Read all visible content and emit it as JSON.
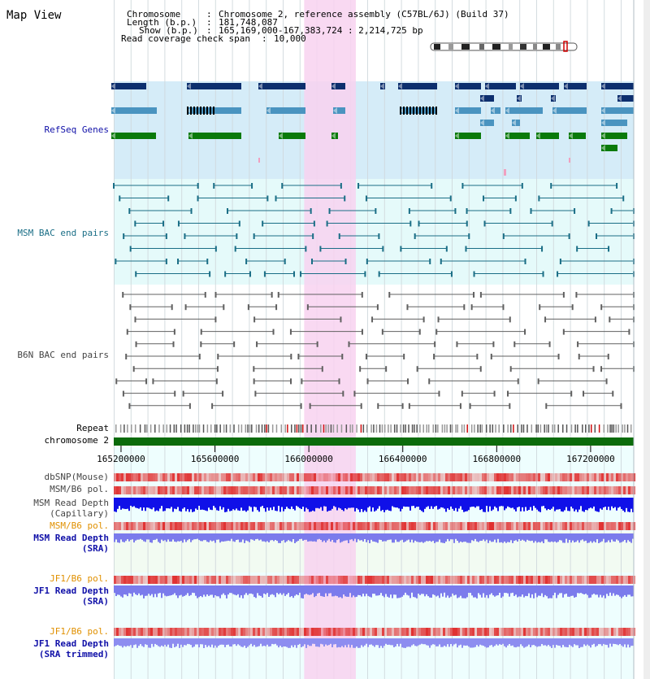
{
  "title": "Map View",
  "info": [
    {
      "label": "Chromosome",
      "value": "Chromosome 2, reference assembly (C57BL/6J) (Build 37)"
    },
    {
      "label": "Length (b.p.)",
      "value": "181,748,087"
    },
    {
      "label": "Show (b.p.)",
      "value": "165,169,000-167,383,724 : 2,214,725 bp"
    },
    {
      "label": "Read coverage check span",
      "value": "10,000"
    }
  ],
  "tracks": {
    "refseq": "RefSeq Genes",
    "msm_bac": "MSM BAC end pairs",
    "b6n_bac": "B6N BAC end pairs",
    "repeat": "Repeat",
    "chromosome": "chromosome 2",
    "dbsnp": "dbSNP(Mouse)",
    "msm_b6_pol": "MSM/B6 pol.",
    "msm_read_cap_1": "MSM Read Depth",
    "msm_read_cap_2": "(Capillary)",
    "msm_b6_pol_2": "MSM/B6 pol.",
    "msm_read_sra_1": "MSM Read Depth",
    "msm_read_sra_2": "(SRA)",
    "jf1_b6_pol": "JF1/B6 pol.",
    "jf1_read_sra_1": "JF1 Read Depth",
    "jf1_read_sra_2": "(SRA)",
    "jf1_b6_pol_2": "JF1/B6 pol.",
    "jf1_read_trim_1": "JF1 Read Depth",
    "jf1_read_trim_2": "(SRA trimmed)"
  },
  "axis": {
    "start_bp": 165169000,
    "end_bp": 167383724,
    "ticks": [
      165200000,
      165600000,
      166000000,
      166400000,
      166800000,
      167200000
    ],
    "tick_labels": [
      "165200000",
      "165600000",
      "166000000",
      "166400000",
      "166800000",
      "167200000"
    ]
  },
  "highlight_region_bp": [
    165980000,
    166200000
  ],
  "colors": {
    "refseq_bg": "#d5ecf8",
    "bac_bg": "#e5fafa",
    "highlight": "#f8d2f0",
    "gene_dark": "#0d2f6e",
    "gene_mid": "#4a94c0",
    "gene_green": "#0a7a0a",
    "msm_bac": "#1a6e86",
    "b6n_bac": "#606060",
    "chromosome": "#0b6b0b",
    "read_cap": "#1010e8",
    "read_sra": "#7b7bec",
    "snp": "#e03030",
    "label_blue": "#1010a8",
    "label_teal": "#1a6e86",
    "label_orange": "#e09000",
    "label_gray": "#444444"
  }
}
